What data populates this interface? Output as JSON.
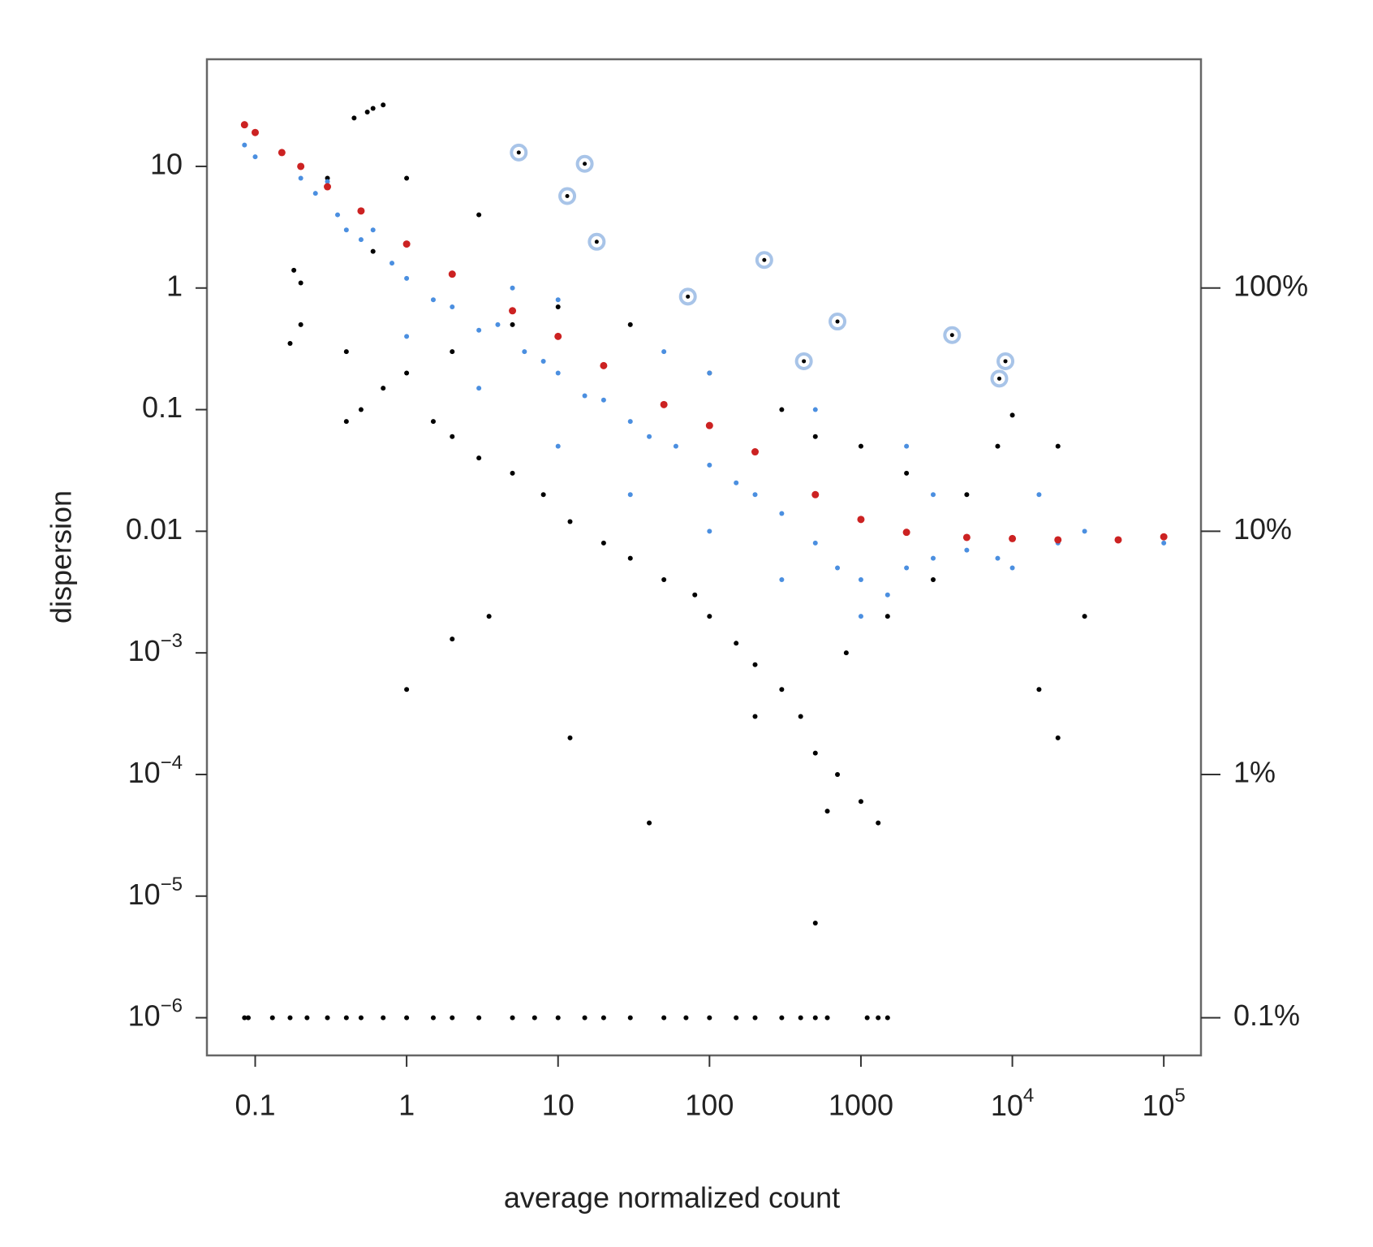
{
  "chart_data": {
    "type": "scatter",
    "xlabel": "average normalized count",
    "ylabel": "dispersion",
    "log_x": true,
    "log_y": true,
    "log_y2": true,
    "xlim": [
      0.048,
      176000
    ],
    "ylim": [
      4.9e-07,
      76
    ],
    "y2lim": [
      0.07,
      872
    ],
    "xticks": [
      0.1,
      1,
      10,
      100,
      1000,
      {
        "value": 10000,
        "label": "10",
        "exponent": "4"
      },
      {
        "value": 100000,
        "label": "10",
        "exponent": "5"
      }
    ],
    "yticks": [
      10,
      1,
      0.1,
      0.01,
      {
        "value": 0.001,
        "label": "10",
        "exponent": "−3"
      },
      {
        "value": 0.0001,
        "label": "10",
        "exponent": "−4"
      },
      {
        "value": 1e-05,
        "label": "10",
        "exponent": "−5"
      },
      {
        "value": 1e-06,
        "label": "10",
        "exponent": "−6"
      }
    ],
    "y2ticks": [
      {
        "value": 100,
        "label": "100%"
      },
      {
        "value": 10,
        "label": "10%"
      },
      {
        "value": 1,
        "label": "1%"
      },
      {
        "value": 0.1,
        "label": "0.1%"
      }
    ],
    "series": [
      {
        "color": "#000000",
        "x": [
          0.45,
          0.55,
          0.7,
          0.6,
          0.18,
          0.2,
          0.17,
          0.2,
          0.4,
          0.4,
          0.5,
          0.7,
          1,
          1.5,
          2,
          3,
          5,
          8,
          12,
          20,
          30,
          50,
          80,
          100,
          150,
          200,
          300,
          400,
          500,
          700,
          1000,
          1300,
          600,
          500,
          1,
          2,
          3.5,
          12,
          40,
          200,
          800,
          1500,
          3000,
          5000,
          8000,
          10000,
          20000,
          30000,
          20000,
          15000,
          2,
          5,
          10,
          30,
          100,
          300,
          500,
          1000,
          2000,
          0.6,
          1,
          3,
          0.3,
          0.085,
          0.09,
          0.13,
          0.17,
          0.22,
          0.3,
          0.4,
          0.5,
          0.7,
          1,
          1.5,
          2,
          3,
          5,
          7,
          10,
          15,
          20,
          30,
          50,
          70,
          100,
          150,
          200,
          300,
          400,
          500,
          600,
          1100,
          1300,
          1500
        ],
        "values": [
          25,
          28,
          32,
          30,
          1.4,
          1.1,
          0.35,
          0.5,
          0.3,
          0.08,
          0.1,
          0.15,
          0.2,
          0.08,
          0.06,
          0.04,
          0.03,
          0.02,
          0.012,
          0.008,
          0.006,
          0.004,
          0.003,
          0.002,
          0.0012,
          0.0008,
          0.0005,
          0.0003,
          0.00015,
          0.0001,
          6e-05,
          4e-05,
          5e-05,
          6e-06,
          0.0005,
          0.0013,
          0.002,
          0.0002,
          4e-05,
          0.0003,
          0.001,
          0.002,
          0.004,
          0.02,
          0.05,
          0.09,
          0.05,
          0.002,
          0.0002,
          0.0005,
          0.3,
          0.5,
          0.7,
          0.5,
          0.2,
          0.1,
          0.06,
          0.05,
          0.03,
          2,
          8,
          4,
          8,
          1e-06,
          1e-06,
          1e-06,
          1e-06,
          1e-06,
          1e-06,
          1e-06,
          1e-06,
          1e-06,
          1e-06,
          1e-06,
          1e-06,
          1e-06,
          1e-06,
          1e-06,
          1e-06,
          1e-06,
          1e-06,
          1e-06,
          1e-06,
          1e-06,
          1e-06,
          1e-06,
          1e-06,
          1e-06,
          1e-06,
          1e-06,
          1e-06,
          1e-06,
          1e-06,
          1e-06
        ]
      },
      {
        "color": "#4b8fe0",
        "x": [
          0.085,
          0.1,
          0.2,
          0.25,
          0.3,
          0.35,
          0.4,
          0.5,
          0.6,
          0.8,
          1,
          1.5,
          2,
          3,
          4,
          6,
          8,
          10,
          15,
          20,
          30,
          40,
          60,
          100,
          150,
          200,
          300,
          500,
          700,
          1000,
          1000,
          1500,
          2000,
          3000,
          5000,
          8000,
          10000,
          20000,
          30000,
          100000,
          5,
          10,
          50,
          100,
          500,
          2000,
          3000,
          15000,
          300,
          100,
          30,
          10,
          3,
          1
        ],
        "values": [
          15,
          12,
          8,
          6,
          7.5,
          4,
          3,
          2.5,
          3,
          1.6,
          1.2,
          0.8,
          0.7,
          0.45,
          0.5,
          0.3,
          0.25,
          0.2,
          0.13,
          0.12,
          0.08,
          0.06,
          0.05,
          0.035,
          0.025,
          0.02,
          0.014,
          0.008,
          0.005,
          0.004,
          0.002,
          0.003,
          0.005,
          0.006,
          0.007,
          0.006,
          0.005,
          0.008,
          0.01,
          0.008,
          1,
          0.8,
          0.3,
          0.2,
          0.1,
          0.05,
          0.02,
          0.02,
          0.004,
          0.01,
          0.02,
          0.05,
          0.15,
          0.4
        ]
      },
      {
        "color": "#cc2222",
        "x": [
          0.085,
          0.1,
          0.15,
          0.2,
          0.3,
          0.5,
          1,
          2,
          5,
          10,
          20,
          50,
          100,
          200,
          500,
          1000,
          2000,
          5000,
          10000,
          20000,
          50000,
          100000
        ],
        "values": [
          22,
          19,
          13,
          10,
          6.8,
          4.3,
          2.3,
          1.3,
          0.65,
          0.4,
          0.23,
          0.11,
          0.074,
          0.045,
          0.02,
          0.0125,
          0.0098,
          0.0089,
          0.0087,
          0.0085,
          0.0085,
          0.009
        ]
      },
      {
        "color": "#a8c4e8",
        "ring": true,
        "x": [
          5.5,
          15,
          11.5,
          18,
          230,
          72,
          700,
          4000,
          420,
          9000,
          8200
        ],
        "values": [
          13,
          10.5,
          5.7,
          2.4,
          1.7,
          0.85,
          0.53,
          0.41,
          0.25,
          0.25,
          0.18
        ]
      }
    ]
  }
}
